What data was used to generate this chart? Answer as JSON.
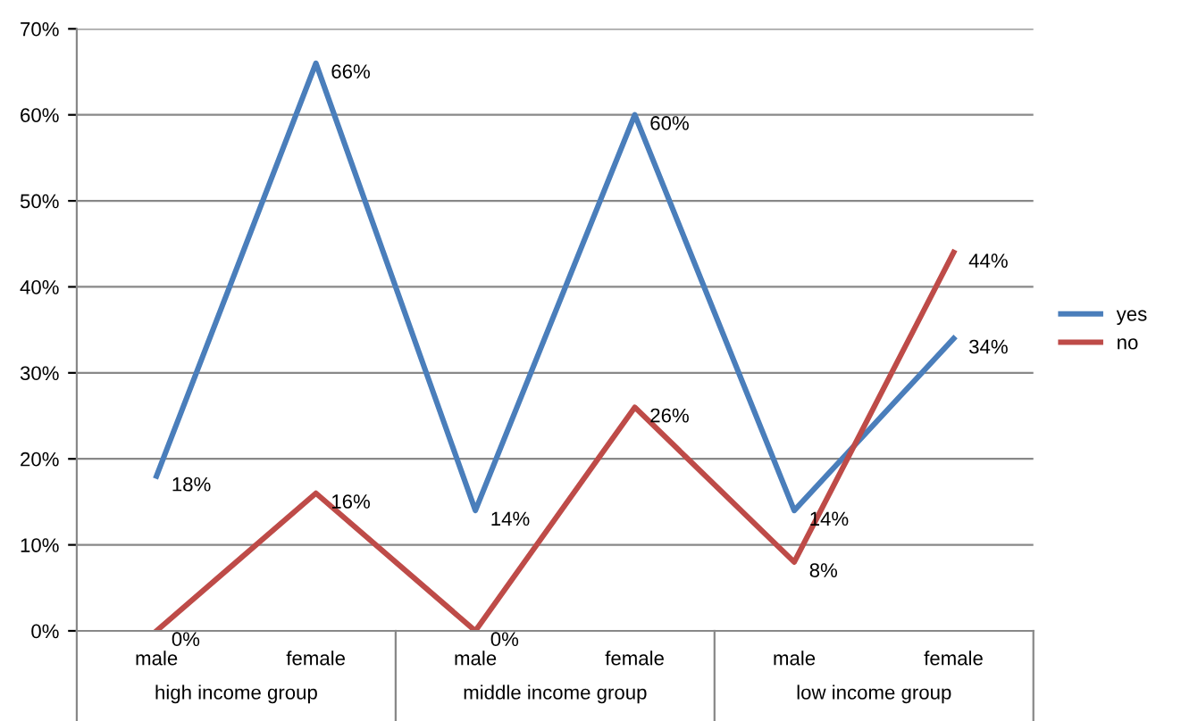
{
  "chart_data": {
    "type": "line",
    "categories": [
      "male",
      "female",
      "male",
      "female",
      "male",
      "female"
    ],
    "series": [
      {
        "name": "yes",
        "color": "#4a7ebb",
        "values": [
          18,
          66,
          14,
          60,
          14,
          34
        ],
        "value_labels": [
          "18%",
          "66%",
          "14%",
          "60%",
          "14%",
          "34%"
        ]
      },
      {
        "name": "no",
        "color": "#be4b48",
        "values": [
          0,
          16,
          0,
          26,
          8,
          44
        ],
        "value_labels": [
          "0%",
          "16%",
          "0%",
          "26%",
          "8%",
          "44%"
        ]
      }
    ],
    "ylim": [
      0,
      70
    ],
    "yticks": [
      {
        "value": 0,
        "label": "0%"
      },
      {
        "value": 10,
        "label": "10%"
      },
      {
        "value": 20,
        "label": "20%"
      },
      {
        "value": 30,
        "label": "30%"
      },
      {
        "value": 40,
        "label": "40%"
      },
      {
        "value": 50,
        "label": "50%"
      },
      {
        "value": 60,
        "label": "60%"
      },
      {
        "value": 70,
        "label": "70%"
      }
    ],
    "grid": "y",
    "legend": "right",
    "marker": "none",
    "line_style": "solid",
    "annotations": [
      "high income group",
      "middle income group",
      "low income group"
    ]
  }
}
